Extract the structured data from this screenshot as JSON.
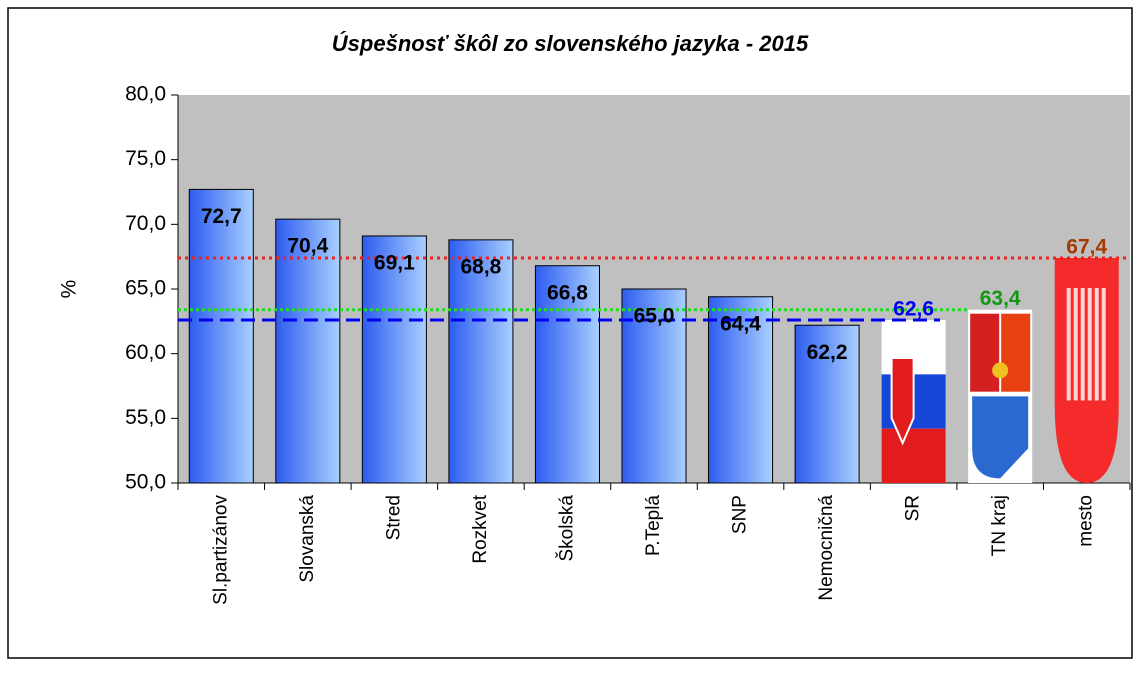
{
  "chart_data": {
    "type": "bar",
    "title": "Úspešnosť škôl zo slovenského jazyka - 2015",
    "y_label": "%",
    "categories": [
      "Sl.partizánov",
      "Slovanská",
      "Stred",
      "Rozkvet",
      "Školská",
      "P.Teplá",
      "SNP",
      "Nemocničná",
      "SR",
      "TN kraj",
      "mesto"
    ],
    "values": [
      72.7,
      70.4,
      69.1,
      68.8,
      66.8,
      65.0,
      64.4,
      62.2,
      62.6,
      63.4,
      67.4
    ],
    "value_labels": [
      "72,7",
      "70,4",
      "69,1",
      "68,8",
      "66,8",
      "65,0",
      "64,4",
      "62,2",
      "62,6",
      "63,4",
      "67,4"
    ],
    "ylim": [
      50,
      80
    ],
    "yticks": [
      {
        "value": 50,
        "label": "50,0"
      },
      {
        "value": 55,
        "label": "55,0"
      },
      {
        "value": 60,
        "label": "60,0"
      },
      {
        "value": 65,
        "label": "65,0"
      },
      {
        "value": 70,
        "label": "70,0"
      },
      {
        "value": 75,
        "label": "75,0"
      },
      {
        "value": 80,
        "label": "80,0"
      }
    ],
    "grid": false
  }
}
